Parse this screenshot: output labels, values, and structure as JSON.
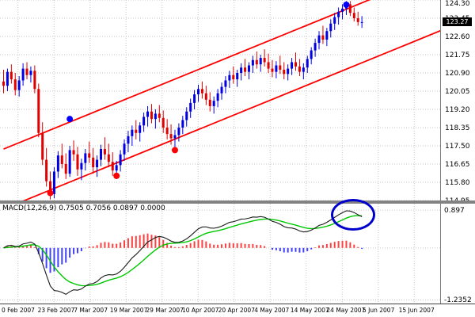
{
  "window": {
    "background": "#ffffff"
  },
  "chart_data": [
    {
      "type": "candlestick",
      "pane": "price",
      "title": "",
      "ylabel": "",
      "ylim": [
        114.95,
        124.3
      ],
      "y_ticks": [
        124.3,
        123.45,
        122.6,
        121.75,
        120.9,
        120.05,
        119.2,
        118.35,
        117.5,
        116.65,
        115.8,
        114.95
      ],
      "current_price": "123.27",
      "x_tick_labels": [
        "0 Feb 2007",
        "23 Feb 2007",
        "7 Mar 2007",
        "19 Mar 2007",
        "29 Mar 2007",
        "10 Apr 2007",
        "20 Apr 2007",
        "4 May 2007",
        "14 May 2007",
        "24 May 2007",
        "5 Jun 2007",
        "15 Jun 2007"
      ],
      "colors": {
        "bull": "#0000e0",
        "bear": "#e00000",
        "grid": "#c6c6c6",
        "channel": "#ff0000",
        "buy_dot": "#0000ff",
        "sell_dot": "#ff0000"
      },
      "channel_lines": [
        {
          "name": "upper",
          "i1": 0,
          "p1": 117.35,
          "i2": 95,
          "p2": 124.39
        },
        {
          "name": "lower",
          "i1": 0,
          "p1": 114.55,
          "i2": 113,
          "p2": 122.93
        }
      ],
      "signal_dots": [
        {
          "index": 12,
          "price": 115.3,
          "type": "sell"
        },
        {
          "index": 29,
          "price": 116.1,
          "type": "sell"
        },
        {
          "index": 44,
          "price": 117.3,
          "type": "sell"
        },
        {
          "index": 17,
          "price": 118.75,
          "type": "buy"
        },
        {
          "index": 88,
          "price": 124.08,
          "type": "buy"
        }
      ],
      "candles": [
        [
          120.5,
          121.05,
          119.95,
          120.3
        ],
        [
          120.3,
          121.1,
          120.05,
          120.95
        ],
        [
          120.95,
          121.3,
          120.4,
          120.6
        ],
        [
          120.6,
          120.9,
          119.85,
          120.1
        ],
        [
          120.1,
          120.75,
          119.8,
          120.55
        ],
        [
          120.55,
          121.35,
          120.3,
          121.1
        ],
        [
          121.1,
          121.4,
          120.6,
          120.8
        ],
        [
          120.8,
          121.2,
          120.45,
          121.0
        ],
        [
          121.0,
          121.25,
          119.95,
          120.15
        ],
        [
          120.15,
          120.4,
          117.9,
          118.1
        ],
        [
          118.1,
          118.6,
          116.6,
          116.85
        ],
        [
          116.85,
          117.4,
          115.6,
          115.85
        ],
        [
          115.85,
          116.3,
          115.0,
          115.25
        ],
        [
          115.25,
          116.5,
          115.05,
          116.3
        ],
        [
          116.3,
          117.25,
          116.0,
          117.05
        ],
        [
          117.05,
          117.6,
          116.45,
          116.65
        ],
        [
          116.65,
          117.15,
          115.95,
          116.2
        ],
        [
          116.2,
          117.5,
          116.05,
          117.3
        ],
        [
          117.3,
          117.75,
          116.8,
          117.1
        ],
        [
          117.1,
          117.45,
          116.1,
          116.4
        ],
        [
          116.4,
          116.9,
          115.9,
          116.7
        ],
        [
          116.7,
          117.35,
          116.35,
          117.15
        ],
        [
          117.15,
          117.7,
          116.7,
          116.95
        ],
        [
          116.95,
          117.4,
          116.2,
          116.5
        ],
        [
          116.5,
          117.05,
          116.05,
          116.85
        ],
        [
          116.85,
          117.55,
          116.55,
          117.35
        ],
        [
          117.35,
          117.9,
          116.85,
          117.1
        ],
        [
          117.1,
          117.6,
          116.5,
          116.75
        ],
        [
          116.75,
          117.2,
          116.1,
          116.35
        ],
        [
          116.35,
          116.8,
          115.95,
          116.6
        ],
        [
          116.6,
          117.3,
          116.3,
          117.1
        ],
        [
          117.1,
          117.8,
          116.8,
          117.6
        ],
        [
          117.6,
          118.2,
          117.2,
          117.95
        ],
        [
          117.95,
          118.45,
          117.5,
          118.25
        ],
        [
          118.25,
          118.7,
          117.8,
          118.1
        ],
        [
          118.1,
          118.6,
          117.7,
          118.45
        ],
        [
          118.45,
          119.05,
          118.15,
          118.85
        ],
        [
          118.85,
          119.35,
          118.4,
          119.1
        ],
        [
          119.1,
          119.45,
          118.55,
          118.75
        ],
        [
          118.75,
          119.2,
          118.3,
          119.0
        ],
        [
          119.0,
          119.4,
          118.6,
          118.8
        ],
        [
          118.8,
          119.15,
          118.1,
          118.35
        ],
        [
          118.35,
          118.75,
          117.8,
          118.05
        ],
        [
          118.05,
          118.5,
          117.55,
          117.85
        ],
        [
          117.85,
          118.25,
          117.45,
          118.0
        ],
        [
          118.0,
          118.55,
          117.7,
          118.35
        ],
        [
          118.35,
          118.9,
          118.05,
          118.7
        ],
        [
          118.7,
          119.3,
          118.4,
          119.1
        ],
        [
          119.1,
          119.7,
          118.8,
          119.5
        ],
        [
          119.5,
          120.1,
          119.2,
          119.9
        ],
        [
          119.9,
          120.35,
          119.55,
          120.15
        ],
        [
          120.15,
          120.5,
          119.7,
          119.95
        ],
        [
          119.95,
          120.3,
          119.4,
          119.65
        ],
        [
          119.65,
          120.0,
          119.1,
          119.35
        ],
        [
          119.35,
          119.8,
          119.0,
          119.6
        ],
        [
          119.6,
          120.15,
          119.3,
          119.95
        ],
        [
          119.95,
          120.45,
          119.65,
          120.25
        ],
        [
          120.25,
          120.75,
          119.95,
          120.55
        ],
        [
          120.55,
          121.0,
          120.2,
          120.8
        ],
        [
          120.8,
          121.2,
          120.4,
          120.6
        ],
        [
          120.6,
          121.05,
          120.25,
          120.9
        ],
        [
          120.9,
          121.35,
          120.55,
          121.15
        ],
        [
          121.15,
          121.55,
          120.75,
          120.95
        ],
        [
          120.95,
          121.4,
          120.6,
          121.25
        ],
        [
          121.25,
          121.7,
          120.9,
          121.5
        ],
        [
          121.5,
          121.9,
          121.1,
          121.3
        ],
        [
          121.3,
          121.75,
          120.95,
          121.6
        ],
        [
          121.6,
          122.0,
          121.2,
          121.4
        ],
        [
          121.4,
          121.8,
          120.9,
          121.1
        ],
        [
          121.1,
          121.5,
          120.7,
          120.95
        ],
        [
          120.95,
          121.45,
          120.65,
          121.25
        ],
        [
          121.25,
          121.7,
          120.85,
          121.05
        ],
        [
          121.05,
          121.4,
          120.6,
          120.85
        ],
        [
          120.85,
          121.3,
          120.55,
          121.1
        ],
        [
          121.1,
          121.6,
          120.8,
          121.4
        ],
        [
          121.4,
          121.85,
          121.0,
          121.2
        ],
        [
          121.2,
          121.55,
          120.75,
          120.95
        ],
        [
          120.95,
          121.35,
          120.6,
          121.15
        ],
        [
          121.15,
          121.7,
          120.9,
          121.55
        ],
        [
          121.55,
          122.1,
          121.3,
          121.95
        ],
        [
          121.95,
          122.5,
          121.65,
          122.3
        ],
        [
          122.3,
          122.85,
          122.0,
          122.65
        ],
        [
          122.65,
          123.1,
          122.25,
          122.45
        ],
        [
          122.45,
          123.0,
          122.15,
          122.85
        ],
        [
          122.85,
          123.4,
          122.55,
          123.2
        ],
        [
          123.2,
          123.7,
          122.9,
          123.5
        ],
        [
          123.5,
          123.95,
          123.15,
          123.75
        ],
        [
          123.75,
          124.1,
          123.4,
          123.9
        ],
        [
          123.9,
          124.25,
          123.6,
          124.1
        ],
        [
          124.1,
          124.25,
          123.55,
          123.7
        ],
        [
          123.7,
          123.95,
          123.3,
          123.45
        ],
        [
          123.45,
          123.75,
          123.1,
          123.27
        ],
        [
          123.27,
          123.55,
          123.0,
          123.27
        ]
      ]
    },
    {
      "type": "macd",
      "pane": "indicator",
      "label": "MACD(12,26,9) 0.7505 0.7056 0.0897 0.0000",
      "params": [
        12,
        26,
        9
      ],
      "readout": {
        "macd": "0.7505",
        "signal": "0.7056",
        "hist": "0.0897",
        "level": "0.0000"
      },
      "ylim": [
        -1.32,
        1.05
      ],
      "y_ticks": [
        0.897,
        -1.2352
      ],
      "y_tick_labels": [
        "0.897",
        "-1.2352"
      ],
      "zero_line": 0.0,
      "colors": {
        "macd_line": "#1a1a1a",
        "signal_line": "#00c800",
        "hist_pos": "#ff4040",
        "hist_neg": "#4040ff",
        "grid": "#c6c6c6"
      },
      "annotation": {
        "shape": "ellipse",
        "color": "#0000cc",
        "note": "crossover-highlight"
      }
    }
  ]
}
